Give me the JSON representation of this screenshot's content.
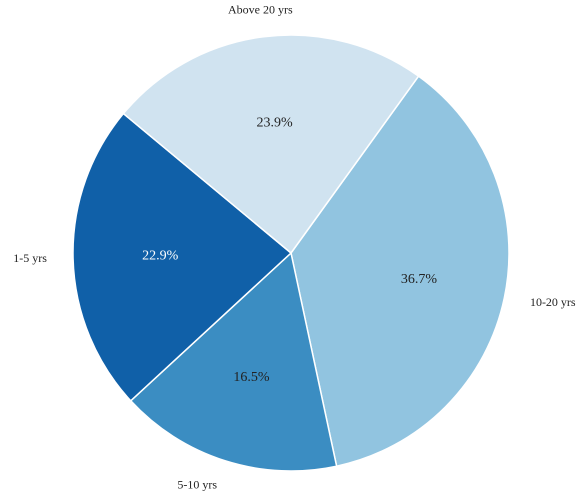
{
  "chart_data": {
    "type": "pie",
    "categories": [
      "10-20 yrs",
      "5-10 yrs",
      "1-5 yrs",
      "Above 20 yrs"
    ],
    "values": [
      36.7,
      16.5,
      22.9,
      23.9
    ],
    "value_labels": [
      "36.7%",
      "16.5%",
      "22.9%",
      "23.9%"
    ],
    "colors": [
      "#91c4e0",
      "#3b8dc2",
      "#1060a8",
      "#d0e3f0"
    ]
  }
}
